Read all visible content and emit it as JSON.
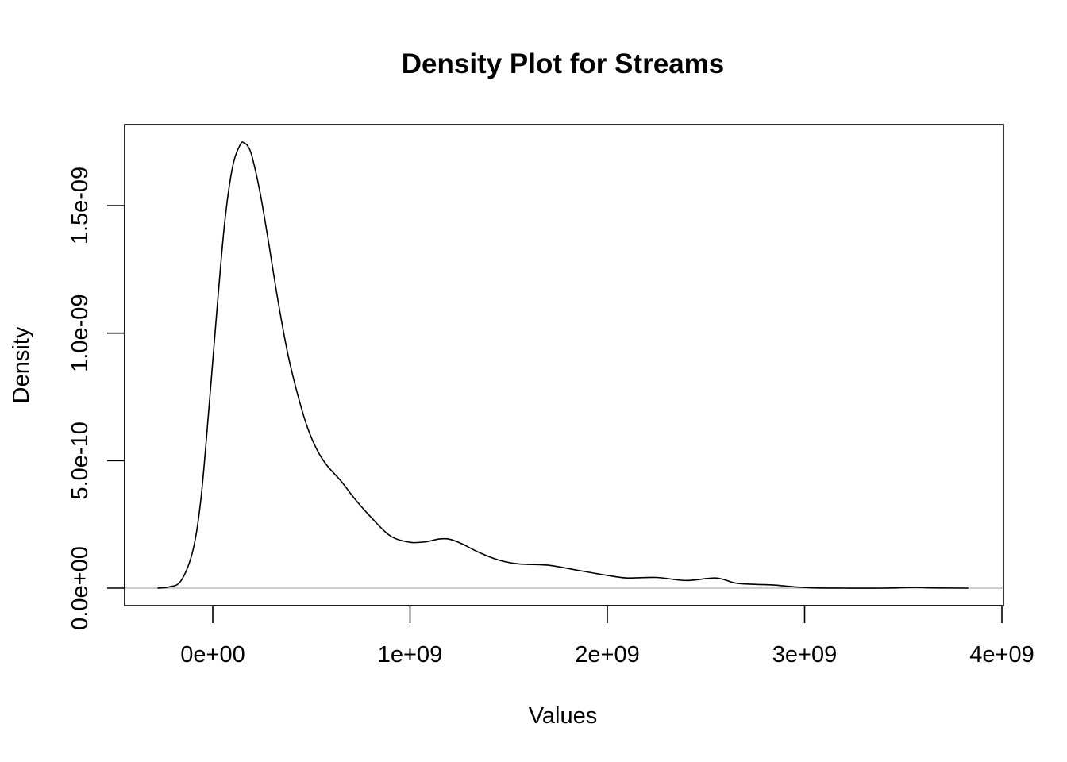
{
  "chart_data": {
    "type": "line",
    "title": "Density Plot for Streams",
    "xlabel": "Values",
    "ylabel": "Density",
    "xlim": [
      -450000000,
      4000000000
    ],
    "ylim": [
      -7e-11,
      1.82e-09
    ],
    "x_ticks": [
      0,
      1000000000,
      2000000000,
      3000000000,
      4000000000
    ],
    "x_tick_labels": [
      "0e+00",
      "1e+09",
      "2e+09",
      "3e+09",
      "4e+09"
    ],
    "y_ticks": [
      0,
      5e-10,
      1e-09,
      1.5e-09
    ],
    "y_tick_labels": [
      "0.0e+00",
      "5.0e-10",
      "1.0e-09",
      "1.5e-09"
    ],
    "grid": false,
    "legend": "none",
    "series": [
      {
        "x": [
          -280000000,
          -220000000,
          -160000000,
          -100000000,
          -60000000,
          -20000000,
          20000000,
          60000000,
          100000000,
          140000000,
          160000000,
          180000000,
          200000000,
          240000000,
          280000000,
          330000000,
          380000000,
          430000000,
          480000000,
          530000000,
          580000000,
          650000000,
          720000000,
          800000000,
          900000000,
          1000000000,
          1080000000,
          1150000000,
          1200000000,
          1260000000,
          1350000000,
          1450000000,
          1550000000,
          1700000000,
          1850000000,
          2000000000,
          2100000000,
          2250000000,
          2400000000,
          2550000000,
          2650000000,
          2750000000,
          2850000000,
          2950000000,
          3050000000,
          3200000000,
          3400000000,
          3560000000,
          3650000000,
          3830000000
        ],
        "y": [
          0,
          5e-12,
          3e-11,
          1.5e-10,
          3.5e-10,
          7e-10,
          1.08e-09,
          1.43e-09,
          1.65e-09,
          1.74e-09,
          1.745e-09,
          1.73e-09,
          1.69e-09,
          1.55e-09,
          1.37e-09,
          1.13e-09,
          9.2e-10,
          7.6e-10,
          6.3e-10,
          5.4e-10,
          4.8e-10,
          4.2e-10,
          3.5e-10,
          2.8e-10,
          2.05e-10,
          1.8e-10,
          1.82e-10,
          1.93e-10,
          1.92e-10,
          1.75e-10,
          1.4e-10,
          1.1e-10,
          9.5e-11,
          9e-11,
          7e-11,
          5e-11,
          4e-11,
          4.2e-11,
          3e-11,
          4e-11,
          2e-11,
          1.5e-11,
          1.2e-11,
          5e-12,
          1e-12,
          0,
          0,
          3e-12,
          1e-12,
          0
        ]
      }
    ]
  }
}
